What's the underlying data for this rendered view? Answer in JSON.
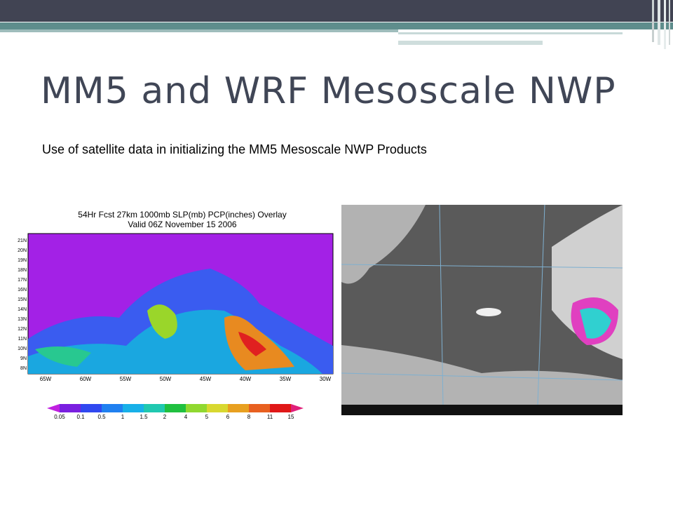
{
  "header": {
    "title": "MM5 and WRF Mesoscale NWP",
    "subtitle": "Use of satellite data in initializing the MM5 Mesoscale NWP Products"
  },
  "forecast_map": {
    "title": "54Hr Fcst 27km 1000mb SLP(mb) PCP(inches) Overlay",
    "subtitle": "Valid 06Z November 15 2006",
    "longitudes": [
      "65W",
      "60W",
      "55W",
      "50W",
      "45W",
      "40W",
      "35W",
      "30W"
    ],
    "latitudes": [
      "21N",
      "20N",
      "19N",
      "18N",
      "17N",
      "16N",
      "15N",
      "14N",
      "13N",
      "12N",
      "11N",
      "10N",
      "9N",
      "8N"
    ],
    "colorbar": [
      "0.05",
      "0.1",
      "0.5",
      "1",
      "1.5",
      "2",
      "4",
      "5",
      "6",
      "8",
      "11",
      "15"
    ]
  }
}
